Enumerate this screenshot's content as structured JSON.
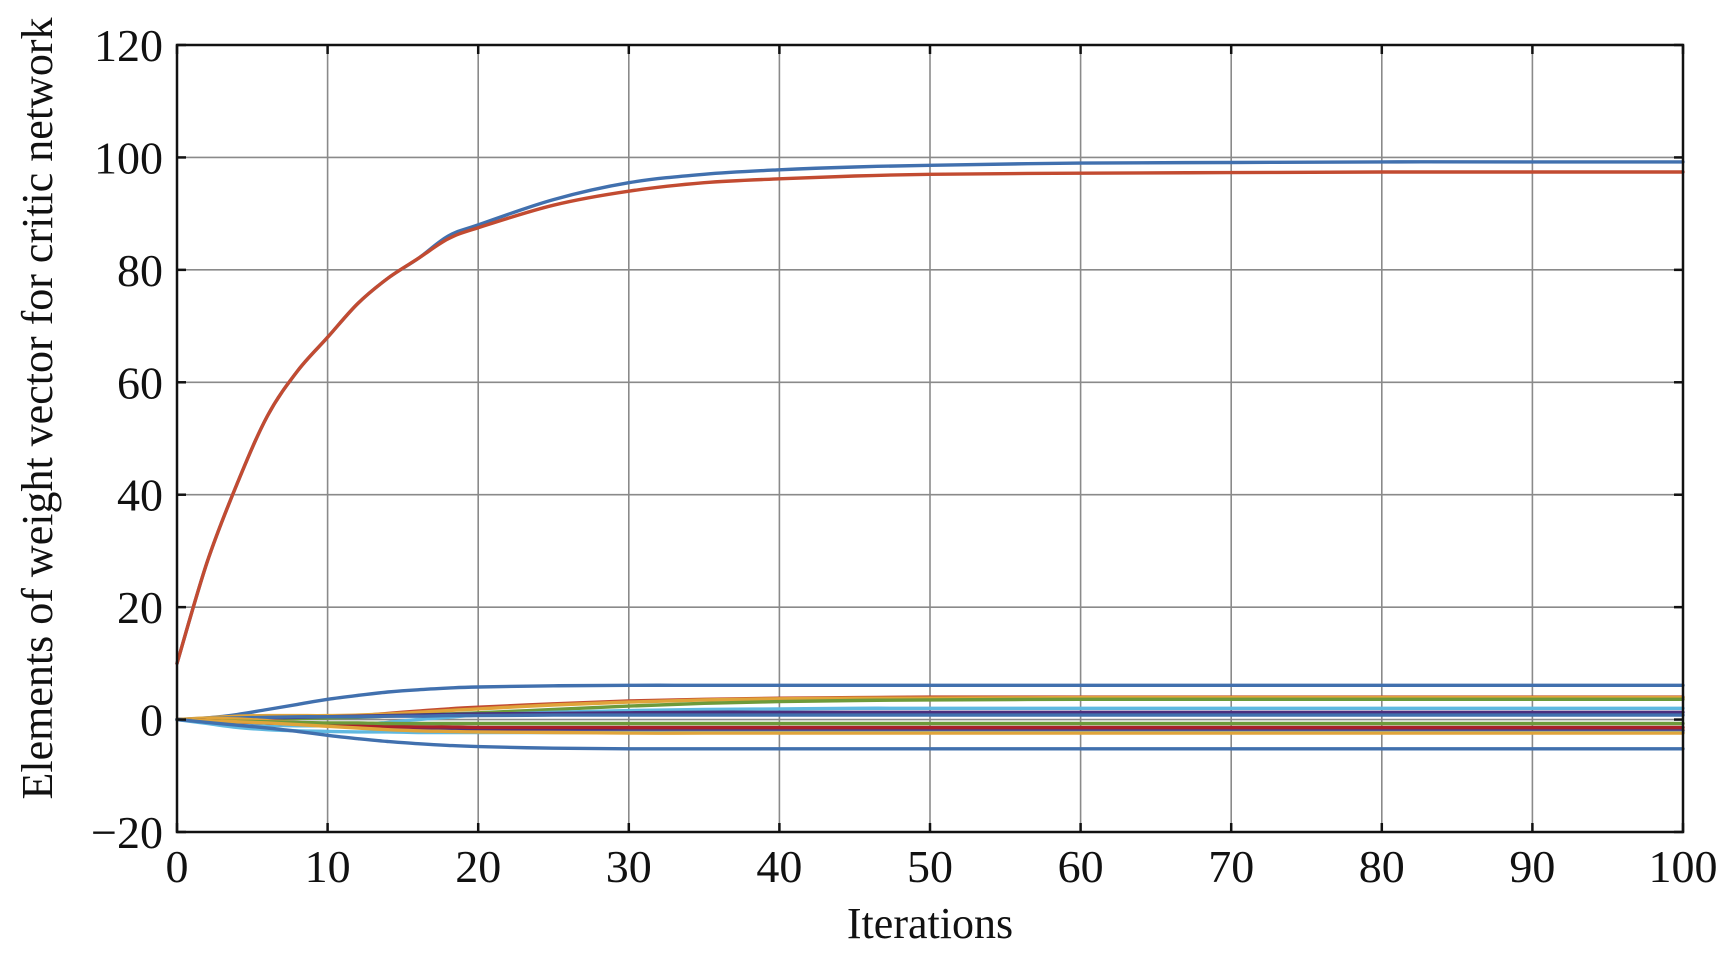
{
  "chart_data": {
    "type": "line",
    "title": "",
    "xlabel": "Iterations",
    "ylabel": "Elements of weight vector for critic network",
    "xlim": [
      0,
      100
    ],
    "ylim": [
      -20,
      120
    ],
    "xticks": [
      0,
      10,
      20,
      30,
      40,
      50,
      60,
      70,
      80,
      90,
      100
    ],
    "yticks": [
      -20,
      0,
      20,
      40,
      60,
      80,
      100,
      120
    ],
    "ytick_labels": [
      "−20",
      "0",
      "20",
      "40",
      "60",
      "80",
      "100",
      "120"
    ],
    "grid": true,
    "x": [
      0,
      2,
      4,
      6,
      8,
      10,
      12,
      14,
      16,
      18,
      20,
      25,
      30,
      35,
      40,
      45,
      50,
      60,
      70,
      80,
      90,
      100
    ],
    "series": [
      {
        "color": "#4170ae",
        "values": [
          10,
          28,
          42,
          54,
          62,
          68,
          74,
          78.5,
          82,
          86,
          88,
          92.5,
          95.5,
          97,
          97.8,
          98.3,
          98.6,
          99,
          99.1,
          99.2,
          99.2,
          99.2
        ]
      },
      {
        "color": "#c24b31",
        "values": [
          10,
          28,
          42,
          54,
          62,
          68,
          74,
          78.5,
          82,
          85.5,
          87.5,
          91.5,
          94,
          95.5,
          96.2,
          96.7,
          97,
          97.2,
          97.3,
          97.4,
          97.4,
          97.4
        ]
      },
      {
        "color": "#4170ae",
        "values": [
          0,
          0.3,
          0.9,
          1.8,
          2.7,
          3.6,
          4.3,
          4.9,
          5.3,
          5.6,
          5.8,
          6,
          6.1,
          6.1,
          6.1,
          6.1,
          6.1,
          6.1,
          6.1,
          6.1,
          6.1,
          6.1
        ]
      },
      {
        "color": "#c24b31",
        "values": [
          0,
          0.1,
          0.2,
          0.3,
          0.4,
          0.5,
          0.7,
          1.1,
          1.5,
          1.9,
          2.2,
          2.8,
          3.3,
          3.6,
          3.8,
          3.9,
          4,
          4,
          4,
          4,
          4,
          4
        ]
      },
      {
        "color": "#e0a43a",
        "values": [
          0,
          0.3,
          0.6,
          0.7,
          0.7,
          0.7,
          0.8,
          1,
          1.3,
          1.6,
          1.9,
          2.6,
          3.1,
          3.5,
          3.7,
          3.8,
          3.8,
          3.9,
          3.9,
          3.9,
          3.9,
          3.9
        ]
      },
      {
        "color": "#6d9a3a",
        "values": [
          0,
          0.1,
          0.2,
          0.2,
          0.2,
          0.3,
          0.4,
          0.6,
          0.8,
          1,
          1.2,
          1.8,
          2.4,
          2.9,
          3.2,
          3.4,
          3.5,
          3.6,
          3.6,
          3.6,
          3.6,
          3.6
        ]
      },
      {
        "color": "#5fb8e0",
        "values": [
          0,
          -0.4,
          -0.8,
          -1,
          -1.1,
          -1.1,
          -0.9,
          -0.5,
          0,
          0.4,
          0.8,
          1.3,
          1.6,
          1.8,
          1.9,
          2,
          2,
          2,
          2,
          2,
          2,
          2
        ]
      },
      {
        "color": "#4a2f7e",
        "values": [
          0,
          0.1,
          0.2,
          0.3,
          0.4,
          0.5,
          0.6,
          0.7,
          0.8,
          0.9,
          1,
          1.1,
          1.2,
          1.3,
          1.3,
          1.3,
          1.3,
          1.3,
          1.3,
          1.3,
          1.3,
          1.3
        ]
      },
      {
        "color": "#4170ae",
        "values": [
          0,
          0.2,
          0.3,
          0.4,
          0.5,
          0.5,
          0.5,
          0.6,
          0.6,
          0.7,
          0.7,
          0.8,
          0.8,
          0.8,
          0.8,
          0.8,
          0.8,
          0.8,
          0.8,
          0.8,
          0.8,
          0.8
        ]
      },
      {
        "color": "#e0a43a",
        "values": [
          0,
          0.2,
          0.1,
          -0.2,
          -0.5,
          -0.8,
          -1,
          -1.2,
          -1.3,
          -1.4,
          -1.5,
          -1.6,
          -1.7,
          -1.7,
          -1.8,
          -1.8,
          -1.8,
          -1.8,
          -1.8,
          -1.8,
          -1.8,
          -1.8
        ]
      },
      {
        "color": "#4a2f7e",
        "values": [
          0,
          -0.2,
          -0.4,
          -0.6,
          -0.8,
          -1,
          -1.2,
          -1.4,
          -1.6,
          -1.7,
          -1.8,
          -1.9,
          -2,
          -2,
          -2,
          -2,
          -2,
          -2,
          -2,
          -2,
          -2,
          -2
        ]
      },
      {
        "color": "#a8202a",
        "values": [
          0,
          -0.2,
          -0.4,
          -0.6,
          -0.8,
          -1,
          -1.1,
          -1.2,
          -1.3,
          -1.3,
          -1.4,
          -1.4,
          -1.4,
          -1.4,
          -1.4,
          -1.4,
          -1.4,
          -1.4,
          -1.4,
          -1.4,
          -1.4,
          -1.4
        ]
      },
      {
        "color": "#6d9a3a",
        "values": [
          0,
          -0.2,
          -0.3,
          -0.4,
          -0.5,
          -0.6,
          -0.6,
          -0.7,
          -0.7,
          -0.7,
          -0.7,
          -0.7,
          -0.7,
          -0.7,
          -0.7,
          -0.7,
          -0.7,
          -0.7,
          -0.7,
          -0.7,
          -0.7,
          -0.7
        ]
      },
      {
        "color": "#5fb8e0",
        "values": [
          0,
          -0.7,
          -1.4,
          -1.8,
          -2,
          -2.1,
          -2.2,
          -2.2,
          -2.3,
          -2.3,
          -2.3,
          -2.3,
          -2.3,
          -2.3,
          -2.3,
          -2.3,
          -2.3,
          -2.3,
          -2.3,
          -2.3,
          -2.3,
          -2.3
        ]
      },
      {
        "color": "#e0a43a",
        "values": [
          0,
          -0.2,
          -0.4,
          -0.6,
          -0.9,
          -1.2,
          -1.5,
          -1.8,
          -2,
          -2.1,
          -2.2,
          -2.3,
          -2.4,
          -2.4,
          -2.4,
          -2.4,
          -2.4,
          -2.4,
          -2.4,
          -2.4,
          -2.4,
          -2.4
        ]
      },
      {
        "color": "#4170ae",
        "values": [
          0,
          -0.5,
          -1,
          -1.5,
          -2.1,
          -2.8,
          -3.4,
          -3.9,
          -4.3,
          -4.6,
          -4.8,
          -5.1,
          -5.2,
          -5.2,
          -5.2,
          -5.2,
          -5.2,
          -5.2,
          -5.2,
          -5.2,
          -5.2,
          -5.2
        ]
      }
    ]
  }
}
